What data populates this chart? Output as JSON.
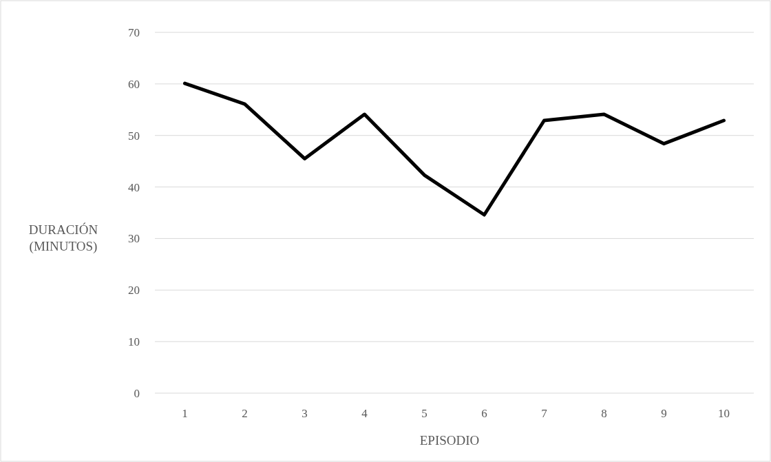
{
  "chart_data": {
    "type": "line",
    "xlabel": "EPISODIO",
    "ylabel": "DURACIÓN (MINUTOS)",
    "categories": [
      "1",
      "2",
      "3",
      "4",
      "5",
      "6",
      "7",
      "8",
      "9",
      "10"
    ],
    "series": [
      {
        "color": "#000000",
        "values": [
          60.1,
          56.1,
          45.5,
          54.1,
          42.3,
          34.6,
          52.9,
          54.1,
          48.4,
          52.9
        ]
      }
    ],
    "ylim": [
      0,
      70
    ],
    "yticks": [
      0,
      10,
      20,
      30,
      40,
      50,
      60,
      70
    ],
    "grid": "y",
    "marker": "none",
    "line_style": "solid"
  }
}
